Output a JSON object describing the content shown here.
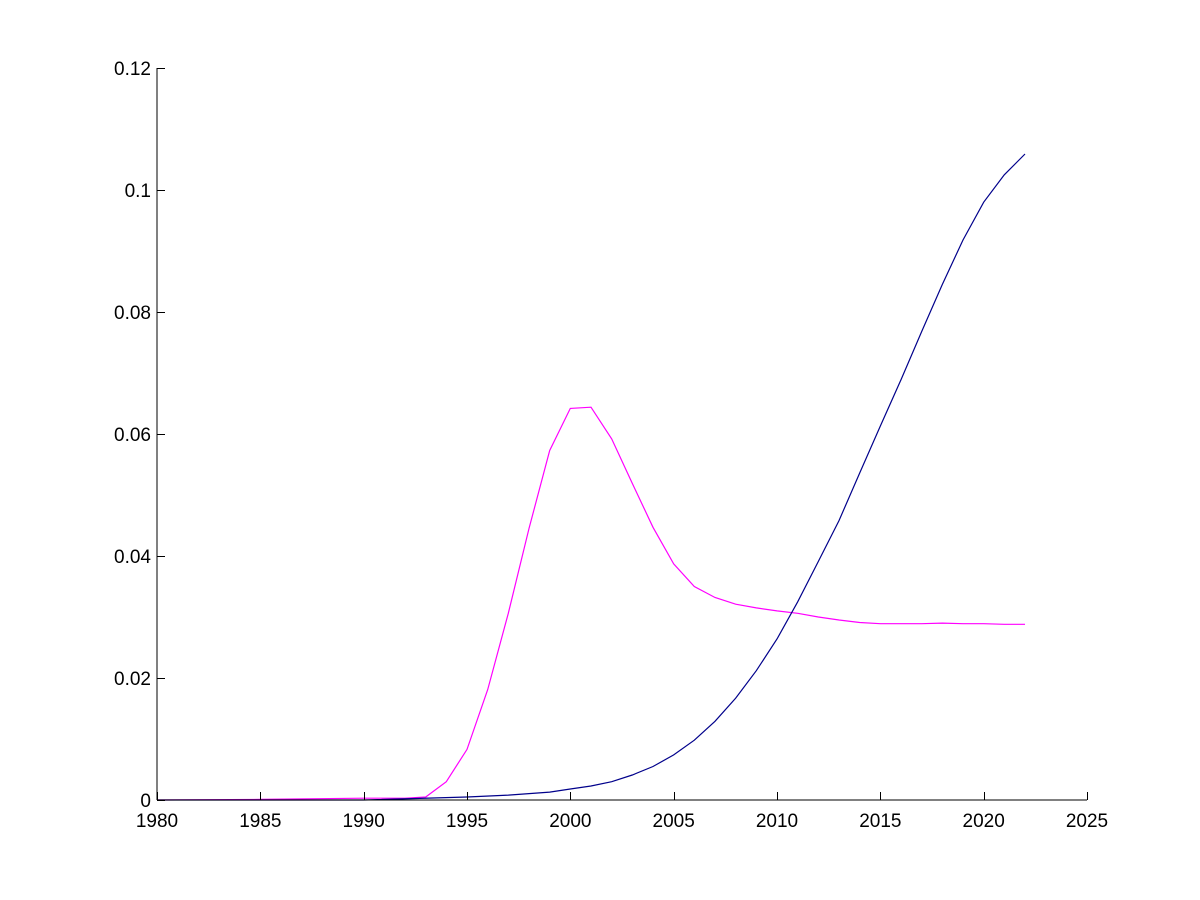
{
  "chart_data": {
    "type": "line",
    "title": "",
    "xlabel": "",
    "ylabel": "",
    "xlim": [
      1980,
      2025
    ],
    "ylim": [
      0,
      0.12
    ],
    "grid": false,
    "xticks": [
      1980,
      1985,
      1990,
      1995,
      2000,
      2005,
      2010,
      2015,
      2020,
      2025
    ],
    "xtick_labels": [
      "1980",
      "1985",
      "1990",
      "1995",
      "2000",
      "2005",
      "2010",
      "2015",
      "2020",
      "2025"
    ],
    "yticks": [
      0,
      0.02,
      0.04,
      0.06,
      0.08,
      0.1,
      0.12
    ],
    "ytick_labels": [
      "0",
      "0.02",
      "0.04",
      "0.06",
      "0.08",
      "0.1",
      "0.12"
    ],
    "series": [
      {
        "color": "#ff00ff",
        "x": [
          1980,
          1985,
          1990,
          1992,
          1993,
          1994,
          1995,
          1996,
          1997,
          1998,
          1999,
          2000,
          2001,
          2002,
          2003,
          2004,
          2005,
          2006,
          2007,
          2008,
          2009,
          2010,
          2011,
          2012,
          2013,
          2014,
          2015,
          2016,
          2017,
          2018,
          2019,
          2020,
          2021,
          2022
        ],
        "y": [
          0,
          0.0001,
          0.0003,
          0.0003,
          0.0005,
          0.003,
          0.0083,
          0.0181,
          0.0306,
          0.0445,
          0.0573,
          0.0642,
          0.0644,
          0.0592,
          0.0519,
          0.0447,
          0.0387,
          0.035,
          0.0332,
          0.0321,
          0.0315,
          0.031,
          0.0306,
          0.03,
          0.0295,
          0.0291,
          0.0289,
          0.0289,
          0.0289,
          0.029,
          0.0289,
          0.0289,
          0.0288,
          0.0288
        ]
      },
      {
        "color": "#00008b",
        "x": [
          1980,
          1985,
          1990,
          1995,
          1997,
          1999,
          2000,
          2001,
          2002,
          2003,
          2004,
          2005,
          2006,
          2007,
          2008,
          2009,
          2010,
          2011,
          2012,
          2013,
          2014,
          2015,
          2016,
          2017,
          2018,
          2019,
          2020,
          2021,
          2022
        ],
        "y": [
          0,
          0,
          0,
          0.0005,
          0.0008,
          0.0013,
          0.0018,
          0.0023,
          0.003,
          0.0041,
          0.0055,
          0.0074,
          0.0098,
          0.0129,
          0.0167,
          0.0212,
          0.0264,
          0.0325,
          0.0391,
          0.0458,
          0.0536,
          0.0613,
          0.0689,
          0.0768,
          0.0845,
          0.0918,
          0.098,
          0.1025,
          0.1059
        ]
      }
    ]
  }
}
